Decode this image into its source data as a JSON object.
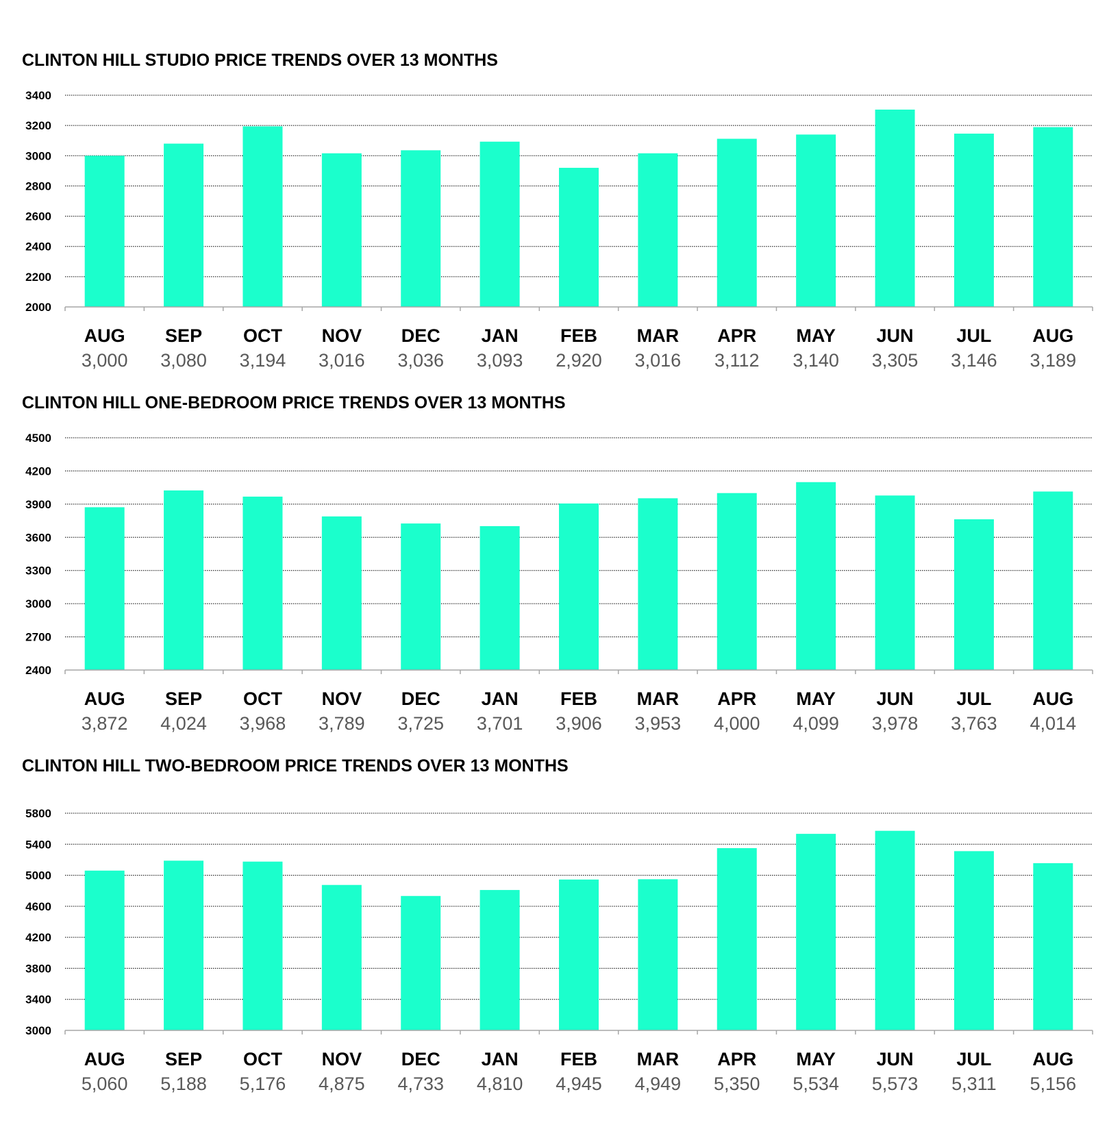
{
  "colors": {
    "bar": "#1bffcc",
    "grid": "#000000",
    "axis": "#a6a6a6",
    "value_text": "#595959"
  },
  "chart_data": [
    {
      "type": "bar",
      "title": "CLINTON HILL STUDIO PRICE TRENDS OVER 13 MONTHS",
      "categories": [
        "AUG",
        "SEP",
        "OCT",
        "NOV",
        "DEC",
        "JAN",
        "FEB",
        "MAR",
        "APR",
        "MAY",
        "JUN",
        "JUL",
        "AUG"
      ],
      "values": [
        3000,
        3080,
        3194,
        3016,
        3036,
        3093,
        2920,
        3016,
        3112,
        3140,
        3305,
        3146,
        3189
      ],
      "value_labels": [
        "3,000",
        "3,080",
        "3,194",
        "3,016",
        "3,036",
        "3,093",
        "2,920",
        "3,016",
        "3,112",
        "3,140",
        "3,305",
        "3,146",
        "3,189"
      ],
      "yticks": [
        "3400",
        "3200",
        "3000",
        "2800",
        "2600",
        "2400",
        "2200",
        "2000"
      ],
      "ylim": [
        2000,
        3400
      ],
      "grid": true
    },
    {
      "type": "bar",
      "title": "CLINTON HILL ONE-BEDROOM PRICE TRENDS OVER 13 MONTHS",
      "categories": [
        "AUG",
        "SEP",
        "OCT",
        "NOV",
        "DEC",
        "JAN",
        "FEB",
        "MAR",
        "APR",
        "MAY",
        "JUN",
        "JUL",
        "AUG"
      ],
      "values": [
        3872,
        4024,
        3968,
        3789,
        3725,
        3701,
        3906,
        3953,
        4000,
        4099,
        3978,
        3763,
        4014
      ],
      "value_labels": [
        "3,872",
        "4,024",
        "3,968",
        "3,789",
        "3,725",
        "3,701",
        "3,906",
        "3,953",
        "4,000",
        "4,099",
        "3,978",
        "3,763",
        "4,014"
      ],
      "yticks": [
        "4500",
        "4200",
        "3900",
        "3600",
        "3300",
        "3000",
        "2700",
        "2400"
      ],
      "ylim": [
        2400,
        4500
      ],
      "grid": true
    },
    {
      "type": "bar",
      "title": "CLINTON HILL TWO-BEDROOM PRICE TRENDS OVER 13 MONTHS",
      "categories": [
        "AUG",
        "SEP",
        "OCT",
        "NOV",
        "DEC",
        "JAN",
        "FEB",
        "MAR",
        "APR",
        "MAY",
        "JUN",
        "JUL",
        "AUG"
      ],
      "values": [
        5060,
        5188,
        5176,
        4875,
        4733,
        4810,
        4945,
        4949,
        5350,
        5534,
        5573,
        5311,
        5156
      ],
      "value_labels": [
        "5,060",
        "5,188",
        "5,176",
        "4,875",
        "4,733",
        "4,810",
        "4,945",
        "4,949",
        "5,350",
        "5,534",
        "5,573",
        "5,311",
        "5,156"
      ],
      "yticks": [
        "5800",
        "5400",
        "5000",
        "4600",
        "4200",
        "3800",
        "3400",
        "3000"
      ],
      "ylim": [
        3000,
        5800
      ],
      "grid": true
    }
  ]
}
